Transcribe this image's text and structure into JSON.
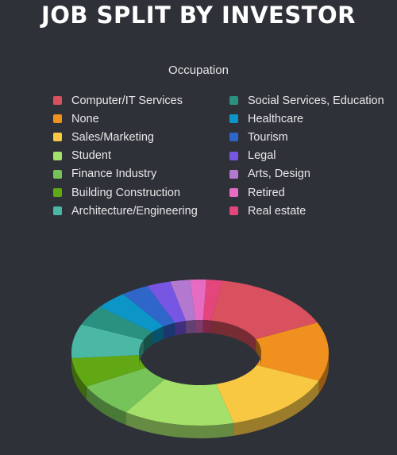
{
  "chart_data": {
    "type": "pie",
    "style": "3d-donut",
    "title": "JOB SPLIT BY INVESTOR",
    "legend_title": "Occupation",
    "legend_position": "top",
    "categories": [
      "Computer/IT Services",
      "None",
      "Sales/Marketing",
      "Student",
      "Finance Industry",
      "Building Construction",
      "Architecture/Engineering",
      "Social Services, Education",
      "Healthcare",
      "Tourism",
      "Legal",
      "Arts, Design",
      "Retired",
      "Real estate"
    ],
    "values": [
      15.5,
      13.0,
      14.5,
      14.0,
      7.5,
      6.5,
      7.5,
      4.5,
      4.0,
      3.5,
      3.0,
      2.5,
      2.0,
      2.0
    ],
    "colors": [
      "#d9505f",
      "#f0901e",
      "#f9c843",
      "#a4e06a",
      "#76c359",
      "#62a814",
      "#4ab8a5",
      "#2a9180",
      "#0c96c8",
      "#2f66c9",
      "#7656e2",
      "#b378cf",
      "#e56cc2",
      "#e4467b"
    ]
  },
  "background": "#2f3139"
}
